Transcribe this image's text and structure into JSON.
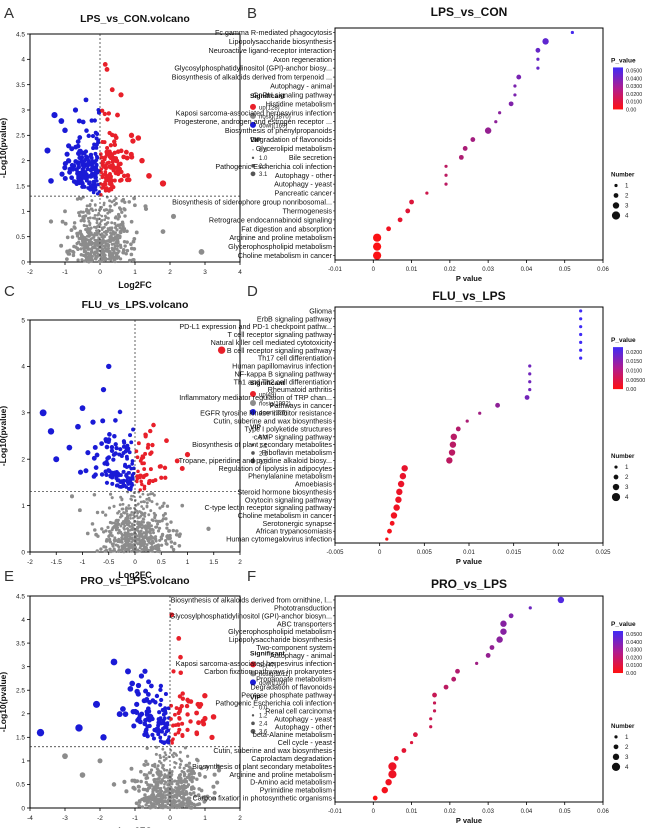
{
  "panel_letters": [
    "A",
    "B",
    "C",
    "D",
    "E",
    "F"
  ],
  "colors": {
    "up": "#e8202a",
    "nosig": "#8c8c8c",
    "down": "#1a1ad6",
    "grad_low": "#ff1010",
    "grad_high": "#3f2bf6"
  },
  "chart_data": [
    {
      "panel": "A",
      "type": "scatter",
      "title": "LPS_vs_CON.volcano",
      "xlabel": "Log2FC",
      "ylabel": "-Log10(pvalue)",
      "xlim": [
        -2,
        4
      ],
      "ylim": [
        0,
        4.5
      ],
      "xticks": [
        -2,
        -1,
        0,
        1,
        2,
        3,
        4
      ],
      "yticks": [
        0,
        0.5,
        1,
        1.5,
        2,
        2.5,
        3,
        3.5,
        4,
        4.5
      ],
      "threshold_y": 1.3,
      "threshold_x": 0,
      "legend_title": "Significant",
      "legend_entries": [
        "up(128)",
        "nosig(1870)",
        "down(169)"
      ],
      "counts": {
        "up": 128,
        "nosig": 1870,
        "down": 169
      },
      "vip_title": "VIP",
      "vip_labels": [
        "0.0",
        "1.0",
        "2.1",
        "3.1"
      ],
      "seed": 11,
      "spread": {
        "up": 0.38,
        "down": 0.42,
        "nosig": 0.42
      },
      "series": [
        {
          "name": "up",
          "values": [
            [
              0.2,
              3.8
            ],
            [
              0.35,
              3.4
            ],
            [
              0.6,
              3.3
            ],
            [
              0.5,
              2.9
            ],
            [
              0.9,
              2.5
            ],
            [
              1.2,
              2.0
            ],
            [
              1.4,
              1.7
            ],
            [
              1.8,
              1.55
            ],
            [
              0.15,
              3.9
            ]
          ]
        },
        {
          "name": "down",
          "values": [
            [
              -1.3,
              2.9
            ],
            [
              -0.7,
              3.0
            ],
            [
              -1.0,
              2.6
            ],
            [
              -1.5,
              2.2
            ],
            [
              -0.4,
              3.2
            ],
            [
              -0.9,
              2.0
            ],
            [
              -1.4,
              1.6
            ]
          ]
        },
        {
          "name": "nosig",
          "values": [
            [
              2.1,
              0.9
            ],
            [
              1.8,
              0.6
            ],
            [
              1.3,
              1.1
            ],
            [
              -1.0,
              1.0
            ],
            [
              -1.4,
              0.8
            ],
            [
              2.9,
              0.2
            ],
            [
              0.7,
              0.4
            ]
          ]
        }
      ]
    },
    {
      "panel": "B",
      "type": "scatter",
      "title": "LPS_vs_CON",
      "xlabel": "P value",
      "xlim": [
        -0.01,
        0.06
      ],
      "xticks": [
        -0.01,
        0,
        0.01,
        0.02,
        0.03,
        0.04,
        0.05,
        0.06
      ],
      "categories": [
        "Fc gamma R-mediated phagocytosis",
        "Lipopolysaccharide biosynthesis",
        "Neuroactive ligand-receptor interaction",
        "Axon regeneration",
        "Glycosylphosphatidylinositol (GPI)-anchor biosy...",
        "Biosynthesis of alkaloids derived from terpenoid ...",
        "Autophagy - animal",
        "GnRH signaling pathway",
        "Histidine metabolism",
        "Kaposi sarcoma-associated herpesvirus infection",
        "Progesterone, androgen and estrogen receptor ...",
        "Biosynthesis of phenylpropanoids",
        "Degradation of flavonoids",
        "Glycerolipid metabolism",
        "Bile secretion",
        "Pathogenic Escherichia coli infection",
        "Autophagy - other",
        "Autophagy - yeast",
        "Pancreatic cancer",
        "Biosynthesis of siderophore group nonribosomal...",
        "Thermogenesis",
        "Retrograde endocannabinoid signaling",
        "Fat digestion and absorption",
        "Arginine and proline metabolism",
        "Glycerophospholipid metabolism",
        "Choline metabolism in cancer"
      ],
      "values": [
        0.052,
        0.045,
        0.043,
        0.043,
        0.043,
        0.038,
        0.037,
        0.037,
        0.036,
        0.033,
        0.032,
        0.03,
        0.026,
        0.024,
        0.023,
        0.019,
        0.019,
        0.019,
        0.014,
        0.01,
        0.009,
        0.007,
        0.004,
        0.001,
        0.001,
        0.001
      ],
      "sizes": [
        1,
        3,
        2,
        1,
        1,
        2,
        1,
        1,
        2,
        1,
        1,
        3,
        2,
        2,
        2,
        1,
        1,
        1,
        1,
        2,
        2,
        2,
        2,
        4,
        4,
        4
      ],
      "pmax": 0.06,
      "legend_title": "P_value",
      "legend_ticks": [
        "0.0500",
        "0.0400",
        "0.0300",
        "0.0200",
        "0.0100",
        "0.00"
      ],
      "legend_values": [
        0.05,
        0.04,
        0.03,
        0.02,
        0.01,
        0
      ],
      "size_title": "Number",
      "size_labels": [
        "1",
        "2",
        "3",
        "4"
      ]
    },
    {
      "panel": "C",
      "type": "scatter",
      "title": "FLU_vs_LPS.volcano",
      "xlabel": "Log2FC",
      "ylabel": "-Log10(pvalue)",
      "xlim": [
        -2,
        2
      ],
      "ylim": [
        0,
        5
      ],
      "xticks": [
        -2,
        -1.5,
        -1,
        -0.5,
        0,
        0.5,
        1,
        1.5,
        2
      ],
      "yticks": [
        0,
        1,
        2,
        3,
        4,
        5
      ],
      "threshold_y": 1.3,
      "threshold_x": 0,
      "legend_title": "Significant",
      "legend_entries": [
        "up(49)",
        "nosig(1992)",
        "down(126)"
      ],
      "counts": {
        "up": 49,
        "nosig": 1992,
        "down": 126
      },
      "vip_title": "VIP",
      "vip_labels": [
        "0.0",
        "1.1",
        "2.2",
        "3.3"
      ],
      "seed": 23,
      "spread": {
        "up": 0.3,
        "down": 0.35,
        "nosig": 0.3
      },
      "series": [
        {
          "name": "up",
          "values": [
            [
              1.65,
              4.35
            ],
            [
              1.0,
              2.1
            ],
            [
              0.9,
              1.8
            ],
            [
              0.6,
              2.4
            ],
            [
              0.5,
              1.6
            ]
          ]
        },
        {
          "name": "down",
          "values": [
            [
              -1.75,
              3.0
            ],
            [
              -1.6,
              2.6
            ],
            [
              -1.25,
              2.25
            ],
            [
              -1.5,
              2.0
            ],
            [
              -0.5,
              4.0
            ],
            [
              -0.6,
              3.5
            ],
            [
              -1.0,
              3.1
            ],
            [
              -0.8,
              2.8
            ]
          ]
        },
        {
          "name": "nosig",
          "values": [
            [
              -1.2,
              1.2
            ],
            [
              -1.05,
              0.9
            ],
            [
              1.4,
              0.5
            ],
            [
              0.9,
              1.0
            ],
            [
              -0.9,
              0.4
            ]
          ]
        }
      ]
    },
    {
      "panel": "D",
      "type": "scatter",
      "title": "FLU_vs_LPS",
      "xlabel": "P value",
      "xlim": [
        -0.005,
        0.025
      ],
      "xticks": [
        -0.005,
        0,
        0.005,
        0.01,
        0.015,
        0.02,
        0.025
      ],
      "categories": [
        "Glioma",
        "ErbB signaling pathway",
        "PD-L1 expression and PD-1 checkpoint pathw...",
        "T cell receptor signaling pathway",
        "Natural killer cell mediated cytotoxicity",
        "B cell receptor signaling pathway",
        "Th17 cell differentiation",
        "Human papillomavirus infection",
        "NF-kappa B signaling pathway",
        "Th1 and Th2 cell differentiation",
        "Rheumatoid arthritis",
        "Inflammatory mediator regulation of TRP chan...",
        "Pathways in cancer",
        "EGFR tyrosine kinase inhibitor resistance",
        "Cutin, suberine and wax biosynthesis",
        "Type I polyketide structures",
        "cAMP signaling pathway",
        "Biosynthesis of plant secondary metabolites",
        "Riboflavin metabolism",
        "Tropane, piperidine and pyridine alkaloid biosy...",
        "Regulation of lipolysis in adipocytes",
        "Phenylalanine metabolism",
        "Amoebiasis",
        "Steroid hormone biosynthesis",
        "Oxytocin signaling pathway",
        "C-type lectin receptor signaling pathway",
        "Choline metabolism in cancer",
        "Serotonergic synapse",
        "African trypanosomiasis",
        "Human cytomegalovirus infection"
      ],
      "values": [
        0.0225,
        0.0225,
        0.0225,
        0.0225,
        0.0225,
        0.0225,
        0.0225,
        0.0168,
        0.0168,
        0.0168,
        0.0168,
        0.0165,
        0.0132,
        0.0112,
        0.0098,
        0.0088,
        0.0083,
        0.0082,
        0.0081,
        0.0078,
        0.0028,
        0.0026,
        0.0024,
        0.0022,
        0.0021,
        0.0019,
        0.0016,
        0.0014,
        0.0011,
        0.0008
      ],
      "sizes": [
        1,
        1,
        1,
        1,
        1,
        1,
        1,
        1,
        1,
        1,
        1,
        2,
        2,
        1,
        1,
        2,
        3,
        3,
        3,
        3,
        3,
        3,
        3,
        3,
        3,
        3,
        3,
        2,
        2,
        1
      ],
      "pmax": 0.025,
      "legend_title": "P_value",
      "legend_ticks": [
        "0.0200",
        "0.0150",
        "0.0100",
        "0.00500",
        "0.00"
      ],
      "legend_values": [
        0.02,
        0.015,
        0.01,
        0.005,
        0
      ],
      "size_title": "Number",
      "size_labels": [
        "1",
        "2",
        "3",
        "4"
      ]
    },
    {
      "panel": "E",
      "type": "scatter",
      "title": "PRO_vs_LPS.volcano",
      "xlabel": "Log2FC",
      "ylabel": "-Log10(pvalue)",
      "xlim": [
        -4,
        2
      ],
      "ylim": [
        0,
        4.5
      ],
      "xticks": [
        -4,
        -3,
        -2,
        -1,
        0,
        1,
        2
      ],
      "yticks": [
        0,
        0.5,
        1,
        1.5,
        2,
        2.5,
        3,
        3.5,
        4,
        4.5
      ],
      "threshold_y": 1.3,
      "threshold_x": 0,
      "legend_title": "Significant",
      "legend_entries": [
        "up(47)",
        "nosig(2011)",
        "down(109)"
      ],
      "counts": {
        "up": 47,
        "nosig": 2011,
        "down": 109
      },
      "vip_title": "VIP",
      "vip_labels": [
        "0.0",
        "1.2",
        "2.4",
        "3.6"
      ],
      "seed": 37,
      "spread": {
        "up": 0.42,
        "down": 0.55,
        "nosig": 0.45
      },
      "series": [
        {
          "name": "up",
          "values": [
            [
              0.05,
              4.1
            ],
            [
              0.25,
              3.6
            ],
            [
              0.3,
              3.2
            ],
            [
              0.1,
              2.9
            ],
            [
              1.0,
              1.9
            ],
            [
              1.2,
              1.5
            ],
            [
              0.8,
              2.2
            ]
          ]
        },
        {
          "name": "down",
          "values": [
            [
              -3.7,
              1.6
            ],
            [
              -2.1,
              2.2
            ],
            [
              -1.6,
              3.1
            ],
            [
              -1.2,
              2.9
            ],
            [
              -0.9,
              2.6
            ],
            [
              -2.6,
              1.7
            ],
            [
              -1.9,
              1.5
            ]
          ]
        },
        {
          "name": "nosig",
          "values": [
            [
              -3.0,
              1.1
            ],
            [
              -2.0,
              1.0
            ],
            [
              -2.5,
              0.7
            ],
            [
              1.4,
              0.8
            ],
            [
              -1.6,
              0.5
            ]
          ]
        }
      ]
    },
    {
      "panel": "F",
      "type": "scatter",
      "title": "PRO_vs_LPS",
      "xlabel": "P value",
      "xlim": [
        -0.01,
        0.06
      ],
      "xticks": [
        -0.01,
        0,
        0.01,
        0.02,
        0.03,
        0.04,
        0.05,
        0.06
      ],
      "categories": [
        "Biosynthesis of alkaloids derived from ornithine, l...",
        "Phototransduction",
        "Glycosylphosphatidylinositol (GPI)-anchor biosyn...",
        "ABC transporters",
        "Glycerophospholipid metabolism",
        "Lipopolysaccharide biosynthesis",
        "Two-component system",
        "Autophagy - animal",
        "Kaposi sarcoma-associated herpesvirus infection",
        "Carbon fixation pathways in prokaryotes",
        "Propanoate metabolism",
        "Degradation of flavonoids",
        "Pentose phosphate pathway",
        "Pathogenic Escherichia coli infection",
        "Renal cell carcinoma",
        "Autophagy - yeast",
        "Autophagy - other",
        "beta-Alanine metabolism",
        "Cell cycle - yeast",
        "Cutin, suberine and wax biosynthesis",
        "Caprolactam degradation",
        "Biosynthesis of plant secondary metabolites",
        "Arginine and proline metabolism",
        "D-Amino acid metabolism",
        "Pyrimidine metabolism",
        "Carbon fixation in photosynthetic organisms"
      ],
      "values": [
        0.049,
        0.041,
        0.036,
        0.034,
        0.034,
        0.033,
        0.031,
        0.03,
        0.027,
        0.022,
        0.021,
        0.019,
        0.016,
        0.016,
        0.016,
        0.015,
        0.015,
        0.011,
        0.01,
        0.008,
        0.006,
        0.005,
        0.005,
        0.004,
        0.003,
        0.0005
      ],
      "sizes": [
        3,
        1,
        2,
        3,
        3,
        3,
        2,
        2,
        1,
        2,
        2,
        2,
        2,
        1,
        1,
        1,
        1,
        2,
        1,
        2,
        2,
        4,
        4,
        3,
        3,
        2
      ],
      "pmax": 0.06,
      "legend_title": "P_value",
      "legend_ticks": [
        "0.0500",
        "0.0400",
        "0.0300",
        "0.0200",
        "0.0100",
        "0.00"
      ],
      "legend_values": [
        0.05,
        0.04,
        0.03,
        0.02,
        0.01,
        0
      ],
      "size_title": "Number",
      "size_labels": [
        "1",
        "2",
        "3",
        "4"
      ]
    }
  ]
}
